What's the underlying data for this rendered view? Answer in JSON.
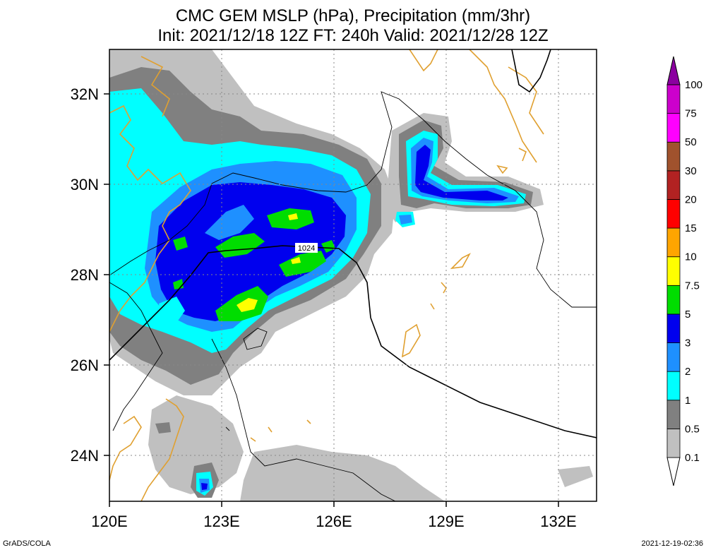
{
  "title": {
    "line1": "CMC GEM MSLP (hPa), Precipitation (mm/3hr)",
    "line2": "Init: 2021/12/18 12Z  FT: 240h  Valid: 2021/12/28 12Z"
  },
  "map": {
    "lon_range": [
      120,
      133
    ],
    "lat_range": [
      23,
      33
    ],
    "x_ticks": [
      "120E",
      "123E",
      "126E",
      "129E",
      "132E"
    ],
    "y_ticks": [
      "32N",
      "30N",
      "28N",
      "26N",
      "24N"
    ],
    "isobar_label": "1024",
    "coast_color": "#e0a030",
    "grid": "dotted"
  },
  "colorbar": {
    "levels": [
      {
        "label": "0.1",
        "color": "#c0c0c0"
      },
      {
        "label": "0.5",
        "color": "#808080"
      },
      {
        "label": "1",
        "color": "#00ffff"
      },
      {
        "label": "2",
        "color": "#1e90ff"
      },
      {
        "label": "3",
        "color": "#0000ee"
      },
      {
        "label": "5",
        "color": "#00dd00"
      },
      {
        "label": "7.5",
        "color": "#ffff00"
      },
      {
        "label": "10",
        "color": "#ffa500"
      },
      {
        "label": "15",
        "color": "#ff0000"
      },
      {
        "label": "20",
        "color": "#b22222"
      },
      {
        "label": "30",
        "color": "#a0522d"
      },
      {
        "label": "50",
        "color": "#ff00ff"
      },
      {
        "label": "75",
        "color": "#cc00cc"
      },
      {
        "label": "100",
        "color": "#8b00a0"
      }
    ],
    "top_color": "#4b0082"
  },
  "footer": {
    "left": "GrADS/COLA",
    "right": "2021-12-19-02:36"
  }
}
